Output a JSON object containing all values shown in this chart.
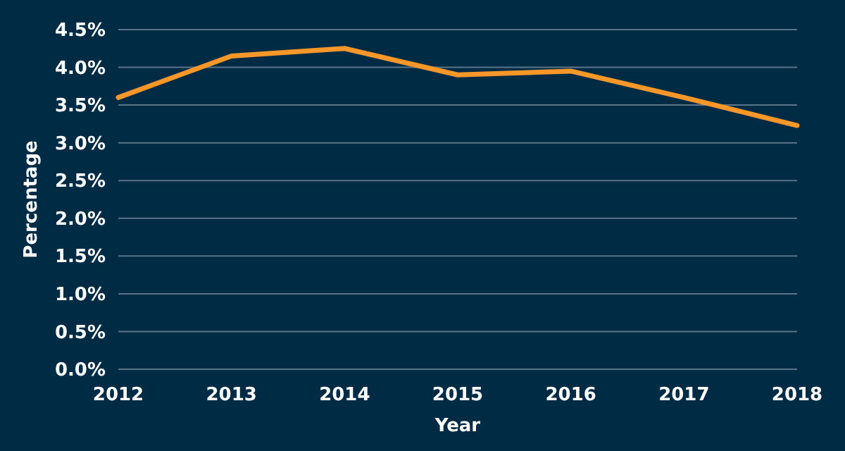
{
  "chart_data": {
    "type": "line",
    "xlabel": "Year",
    "ylabel": "Percentage",
    "categories": [
      "2012",
      "2013",
      "2014",
      "2015",
      "2016",
      "2017",
      "2018"
    ],
    "series": [
      {
        "color": "#f7972a",
        "values": [
          3.6,
          4.15,
          4.25,
          3.9,
          3.95,
          3.6,
          3.23
        ]
      }
    ],
    "ylim": [
      0,
      4.5
    ],
    "yticks": [
      {
        "value": 0,
        "label": "0.0%"
      },
      {
        "value": 0.5,
        "label": "0.5%"
      },
      {
        "value": 1,
        "label": "1.0%"
      },
      {
        "value": 1.5,
        "label": "1.5%"
      },
      {
        "value": 2,
        "label": "2.0%"
      },
      {
        "value": 2.5,
        "label": "2.5%"
      },
      {
        "value": 3,
        "label": "3.0%"
      },
      {
        "value": 3.5,
        "label": "3.5%"
      },
      {
        "value": 4,
        "label": "4.0%"
      },
      {
        "value": 4.5,
        "label": "4.5%"
      }
    ],
    "grid": "y",
    "marker": "none",
    "line_style": "solid"
  }
}
